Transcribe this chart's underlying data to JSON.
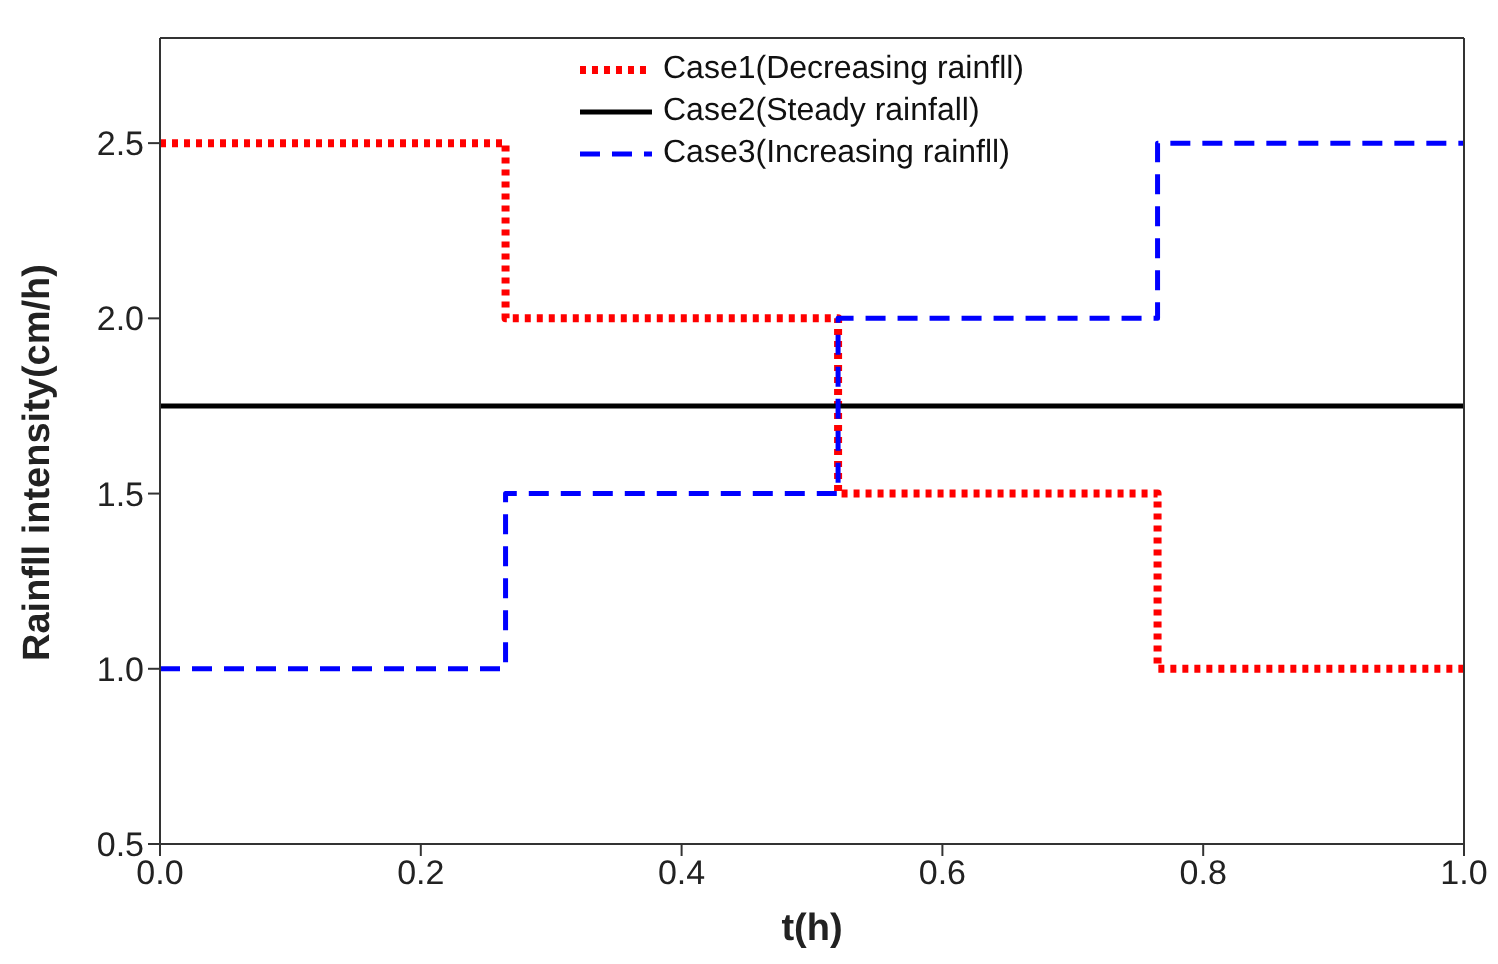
{
  "chart_data": {
    "type": "step",
    "xlabel": "t(h)",
    "ylabel": "Rainfll intensity(cm/h)",
    "xlim": [
      0,
      1
    ],
    "xticks": [
      {
        "value": 0,
        "label": "0.0"
      },
      0.2,
      0.4,
      0.6,
      0.8,
      {
        "value": 1,
        "label": "1.0"
      }
    ],
    "ylim": [
      0.5,
      2.8
    ],
    "yticks": [
      0.5,
      {
        "value": 1,
        "label": "1.0"
      },
      1.5,
      {
        "value": 2,
        "label": "2.0"
      },
      2.5
    ],
    "legend": "top",
    "series": [
      {
        "name": "Case1(Decreasing rainfll)",
        "color": "#ff0000",
        "line_style": "dotted",
        "x": [
          0,
          0.265,
          0.52,
          0.765,
          1
        ],
        "values": [
          2.5,
          2,
          1.5,
          1,
          1
        ]
      },
      {
        "name": "Case2(Steady rainfall)",
        "color": "#000000",
        "line_style": "solid",
        "x": [
          0,
          1
        ],
        "values": [
          1.75,
          1.75
        ]
      },
      {
        "name": "Case3(Increasing rainfll)",
        "color": "#0000ff",
        "line_style": "dashed",
        "x": [
          0,
          0.265,
          0.52,
          0.765,
          1
        ],
        "values": [
          1,
          1.5,
          2,
          2.5,
          2.5
        ]
      }
    ]
  }
}
